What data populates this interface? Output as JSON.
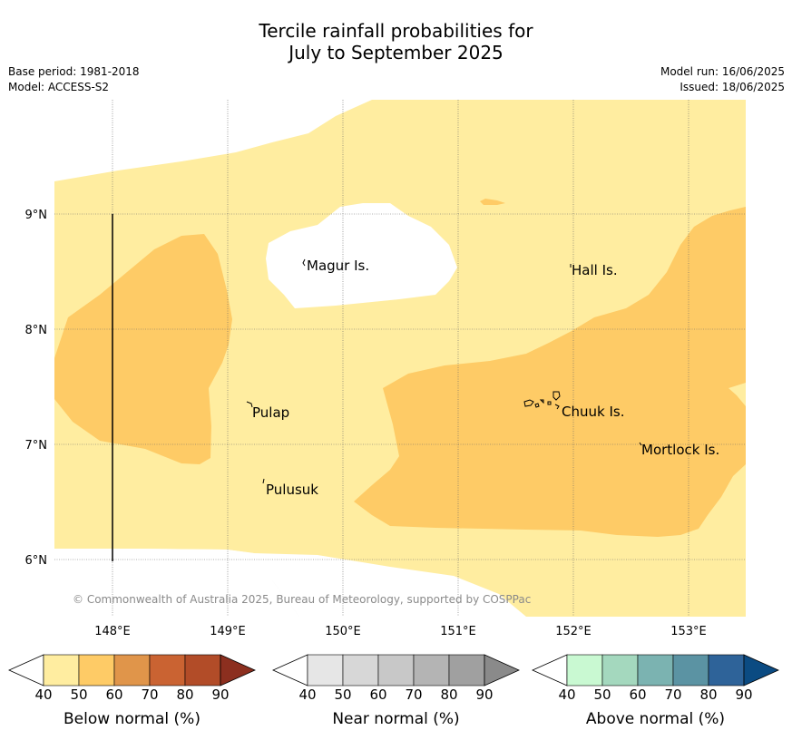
{
  "title": {
    "line1": "Tercile rainfall probabilities for",
    "line2": "July to September 2025"
  },
  "meta": {
    "base_period": "Base period: 1981-2018",
    "model": "Model: ACCESS-S2",
    "model_run": "Model run: 16/06/2025",
    "issued": "Issued: 18/06/2025"
  },
  "map": {
    "lat_labels": [
      "9°N",
      "8°N",
      "7°N",
      "6°N"
    ],
    "lon_labels": [
      "148°E",
      "149°E",
      "150°E",
      "151°E",
      "152°E",
      "153°E"
    ],
    "places": [
      "Magur Is.",
      "Hall Is.",
      "Pulap",
      "Chuuk Is.",
      "Mortlock Is.",
      "Pulusuk"
    ],
    "copyright": "© Commonwealth of Australia 2025, Bureau of Meteorology, supported by COSPPac",
    "colors": {
      "below_40_50": "#ffeda0",
      "below_50_60": "#fecb66",
      "near_normal": "#ebebeb",
      "no_dominant": "#ffffff"
    }
  },
  "legends": [
    {
      "name": "Below normal (%)",
      "ticks": [
        "40",
        "50",
        "60",
        "70",
        "80",
        "90"
      ],
      "colors": [
        "#ffffff",
        "#ffeda0",
        "#fecb66",
        "#e0954a",
        "#ca6332",
        "#b24c28",
        "#8c2f1f"
      ]
    },
    {
      "name": "Near normal (%)",
      "ticks": [
        "40",
        "50",
        "60",
        "70",
        "80",
        "90"
      ],
      "colors": [
        "#ffffff",
        "#e6e6e6",
        "#d7d7d7",
        "#c8c8c8",
        "#b4b4b4",
        "#a0a0a0",
        "#8a8a8a"
      ]
    },
    {
      "name": "Above normal (%)",
      "ticks": [
        "40",
        "50",
        "60",
        "70",
        "80",
        "90"
      ],
      "colors": [
        "#ffffff",
        "#c9f9d2",
        "#a4d8be",
        "#7bb3b1",
        "#5b93a3",
        "#2e6399",
        "#0b4b82"
      ]
    }
  ]
}
